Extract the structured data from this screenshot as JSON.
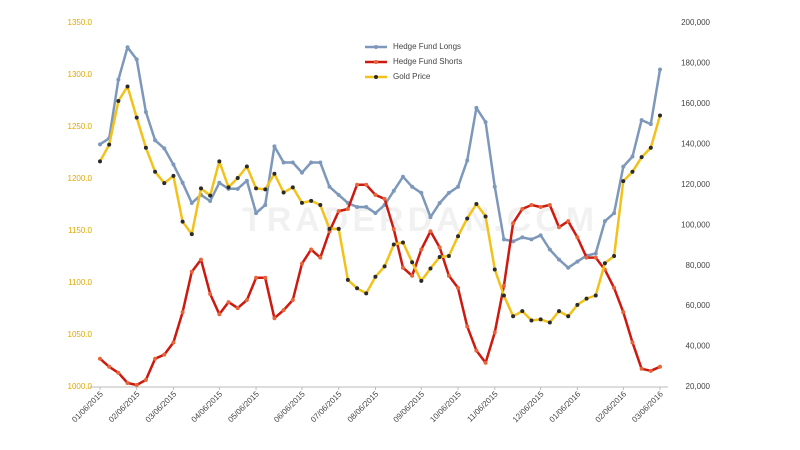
{
  "chart_data": {
    "type": "line",
    "watermark": "TRADERDAN.COM",
    "categories": [
      "01/06/2015",
      null,
      null,
      null,
      "02/06/2015",
      null,
      null,
      null,
      "03/06/2015",
      null,
      null,
      null,
      null,
      "04/06/2015",
      null,
      null,
      null,
      "05/06/2015",
      null,
      null,
      null,
      null,
      "06/06/2015",
      null,
      null,
      null,
      "07/06/2015",
      null,
      null,
      null,
      "08/06/2015",
      null,
      null,
      null,
      null,
      "09/06/2015",
      null,
      null,
      null,
      "10/06/2015",
      null,
      null,
      null,
      "11/06/2015",
      null,
      null,
      null,
      null,
      "12/06/2015",
      null,
      null,
      null,
      "01/06/2016",
      null,
      null,
      null,
      null,
      "02/06/2016",
      null,
      null,
      null,
      "03/06/2016"
    ],
    "series": [
      {
        "name": "Hedge Fund Longs",
        "color": "#7d98ba",
        "marker_color": "#7d98ba",
        "axis": "y2",
        "values": [
          140000,
          143000,
          172000,
          188000,
          182000,
          156000,
          142000,
          138000,
          130000,
          121000,
          111000,
          115000,
          112000,
          121000,
          118000,
          118000,
          122000,
          106000,
          110000,
          139000,
          131000,
          131000,
          126000,
          131000,
          131000,
          119000,
          115000,
          111000,
          109000,
          109000,
          106000,
          110000,
          117000,
          124000,
          119000,
          116000,
          104000,
          111000,
          116000,
          119000,
          132000,
          158000,
          151000,
          119000,
          93000,
          92000,
          94000,
          93000,
          95000,
          88000,
          83000,
          79000,
          82000,
          85000,
          86000,
          102000,
          106000,
          129000,
          134000,
          152000,
          150000,
          177000
        ]
      },
      {
        "name": "Hedge Fund Shorts",
        "color": "#cc1a10",
        "marker_color": "#e8643a",
        "axis": "y2",
        "values": [
          34000,
          30000,
          27000,
          22000,
          21000,
          23500,
          34000,
          36000,
          42000,
          57000,
          77000,
          83000,
          66000,
          56000,
          62000,
          59000,
          63000,
          74000,
          74000,
          54000,
          58000,
          63000,
          81000,
          88000,
          84000,
          97000,
          107000,
          108000,
          120000,
          120000,
          115000,
          113000,
          98000,
          79000,
          75000,
          88000,
          97000,
          89000,
          75000,
          69000,
          50000,
          38000,
          32000,
          47000,
          70000,
          101000,
          108000,
          110000,
          109000,
          110000,
          99000,
          102000,
          94000,
          84000,
          84000,
          78000,
          69000,
          57000,
          42000,
          29000,
          28000,
          30000
        ]
      },
      {
        "name": "Gold Price",
        "color": "#f2c21b",
        "marker_color": "#2a2a2a",
        "values": [
          1217,
          1233,
          1275,
          1289,
          1259,
          1230,
          1207,
          1196,
          1203,
          1159,
          1147,
          1191,
          1184,
          1217,
          1192,
          1201,
          1212,
          1191,
          1190,
          1205,
          1187,
          1192,
          1177,
          1179,
          1175,
          1152,
          1152,
          1103,
          1095,
          1090,
          1106,
          1116,
          1137,
          1139,
          1120,
          1102,
          1114,
          1125,
          1126,
          1145,
          1162,
          1176,
          1164,
          1113,
          1088,
          1068,
          1073,
          1064,
          1065,
          1062,
          1073,
          1068,
          1079,
          1085,
          1088,
          1119,
          1126,
          1198,
          1207,
          1221,
          1230,
          1261
        ]
      }
    ],
    "ylim": [
      1000,
      1350
    ],
    "yticks": [
      {
        "value": 1000,
        "label": "1000.0"
      },
      {
        "value": 1050,
        "label": "1050.0"
      },
      {
        "value": 1100,
        "label": "1100.0"
      },
      {
        "value": 1150,
        "label": "1150.0"
      },
      {
        "value": 1200,
        "label": "1200.0"
      },
      {
        "value": 1250,
        "label": "1250.0"
      },
      {
        "value": 1300,
        "label": "1300.0"
      },
      {
        "value": 1350,
        "label": "1350.0"
      }
    ],
    "y_tick_color": "#e0a800",
    "y2lim": [
      20000,
      200000
    ],
    "y2ticks": [
      {
        "value": 20000,
        "label": "20,000"
      },
      {
        "value": 40000,
        "label": "40,000"
      },
      {
        "value": 60000,
        "label": "60,000"
      },
      {
        "value": 80000,
        "label": "80,000"
      },
      {
        "value": 100000,
        "label": "100,000"
      },
      {
        "value": 120000,
        "label": "120,000"
      },
      {
        "value": 140000,
        "label": "140,000"
      },
      {
        "value": 160000,
        "label": "160,000"
      },
      {
        "value": 180000,
        "label": "180,000"
      },
      {
        "value": 200000,
        "label": "200,000"
      }
    ],
    "legend_position": "top-center",
    "grid": false
  }
}
